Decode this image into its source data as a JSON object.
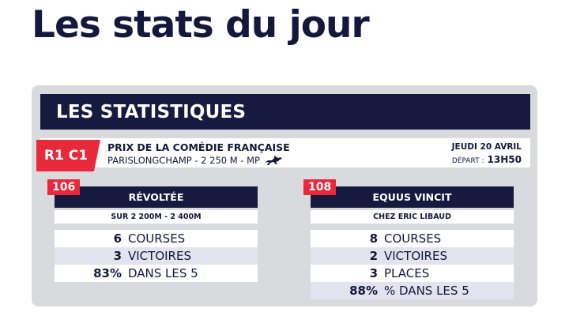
{
  "page_title": "Les stats du jour",
  "panel_title": "LES STATISTIQUES",
  "race": {
    "code": "R1 C1",
    "name": "PRIX DE LA COMÉDIE FRANÇAISE",
    "details": "PARISLONGCHAMP - 2 250 M - MP",
    "details_icon": "jockey-horse-icon",
    "date": "JEUDI 20 AVRIL",
    "time_label": "DÉPART :",
    "time_value": "13H50"
  },
  "horses": [
    {
      "number": "106",
      "name": "RÉVOLTÉE",
      "subtitle": "SUR 2 200M - 2 400M",
      "stats": [
        {
          "value": "6",
          "label": "COURSES"
        },
        {
          "value": "3",
          "label": "VICTOIRES"
        },
        {
          "value": "83%",
          "label": "DANS LES 5"
        }
      ]
    },
    {
      "number": "108",
      "name": "EQUUS VINCIT",
      "subtitle": "CHEZ ERIC LIBAUD",
      "stats": [
        {
          "value": "8",
          "label": "COURSES"
        },
        {
          "value": "2",
          "label": "VICTOIRES"
        },
        {
          "value": "3",
          "label": "PLACES"
        },
        {
          "value": "88%",
          "label": "% DANS LES 5"
        }
      ]
    }
  ],
  "colors": {
    "navy": "#161a3e",
    "red": "#e8283b",
    "panel_gray": "#d9dade",
    "row_alt": "#e2e3ee"
  }
}
